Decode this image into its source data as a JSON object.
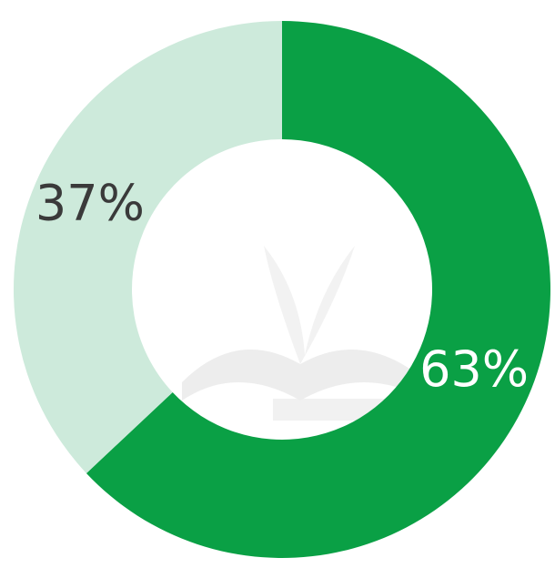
{
  "chart_data": {
    "type": "donut",
    "values": [
      63,
      37
    ],
    "value_labels": [
      "63%",
      "37%"
    ],
    "colors": [
      "#0aa045",
      "#cdeadb"
    ],
    "label_colors": [
      "#ffffff",
      "#3a3a3a"
    ]
  }
}
